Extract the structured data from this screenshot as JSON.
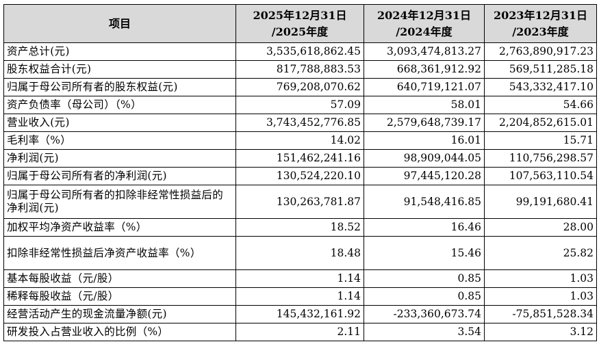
{
  "table": {
    "headers": [
      "项目",
      "2025年12月31日\n/2025年度",
      "2024年12月31日\n/2024年度",
      "2023年12月31日\n/2023年度"
    ],
    "rows": [
      [
        "资产总计(元)",
        "3,535,618,862.45",
        "3,093,474,813.27",
        "2,763,890,917.23"
      ],
      [
        "股东权益合计(元)",
        "817,788,883.53",
        "668,361,912.92",
        "569,511,285.18"
      ],
      [
        "归属于母公司所有者的股东权益(元)",
        "769,208,070.62",
        "640,719,121.07",
        "543,332,417.10"
      ],
      [
        "资产负债率（母公司）（%）",
        "57.09",
        "58.01",
        "54.66"
      ],
      [
        "营业收入(元)",
        "3,743,452,776.85",
        "2,579,648,739.17",
        "2,204,852,615.01"
      ],
      [
        "毛利率（%）",
        "14.02",
        "16.01",
        "15.71"
      ],
      [
        "净利润(元)",
        "151,462,241.16",
        "98,909,044.05",
        "110,756,298.57"
      ],
      [
        "归属于母公司所有者的净利润(元)",
        "130,524,220.10",
        "97,445,120.28",
        "107,563,110.54"
      ],
      [
        "归属于母公司所有者的扣除非经常性损益后的净利润(元)",
        "130,263,781.87",
        "91,548,416.85",
        "99,191,680.41"
      ],
      [
        "加权平均净资产收益率（%）",
        "18.52",
        "16.46",
        "28.00"
      ],
      [
        "扣除非经常性损益后净资产收益率（%）",
        "18.48",
        "15.46",
        "25.82"
      ],
      [
        "基本每股收益（元/股）",
        "1.14",
        "0.85",
        "1.03"
      ],
      [
        "稀释每股收益（元/股）",
        "1.14",
        "0.85",
        "1.03"
      ],
      [
        "经营活动产生的现金流量净额(元)",
        "145,432,161.92",
        "-233,360,673.74",
        "-75,851,528.34"
      ],
      [
        "研发投入占营业收入的比例（%）",
        "2.11",
        "3.54",
        "3.12"
      ]
    ]
  }
}
